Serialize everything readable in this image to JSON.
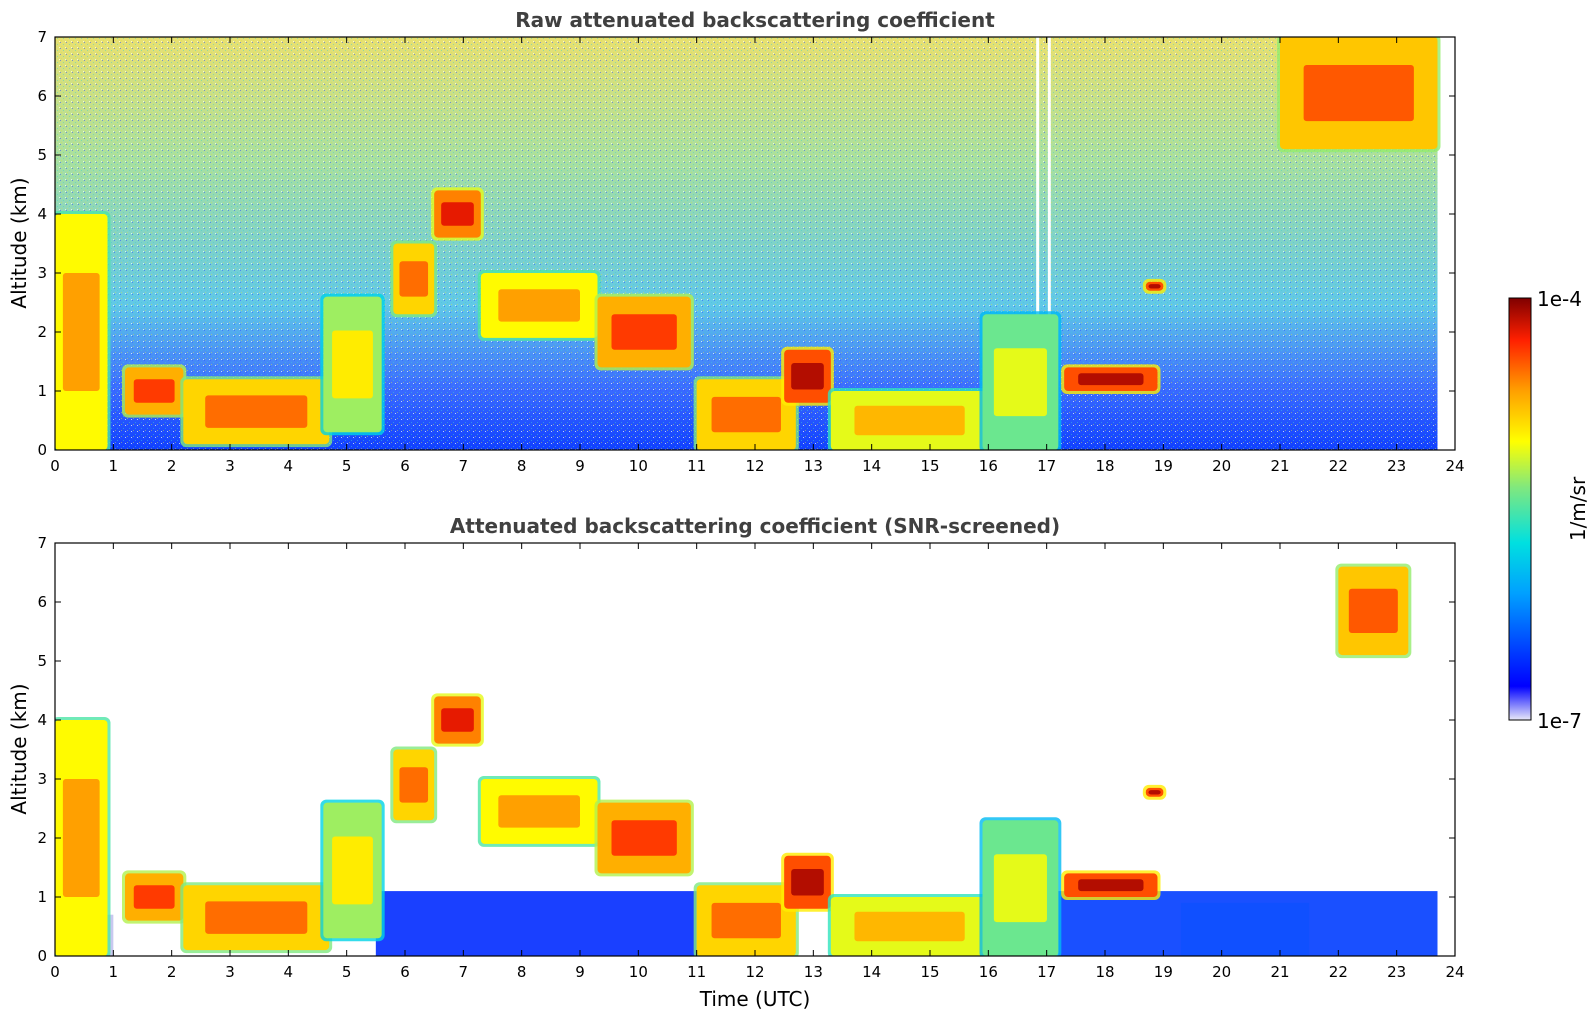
{
  "chart_data": [
    {
      "type": "heatmap",
      "title": "Raw attenuated backscattering coefficient",
      "xlabel": "",
      "ylabel": "Altitude (km)",
      "xlim": [
        0,
        24
      ],
      "ylim": [
        0,
        7
      ],
      "xticks": [
        "0",
        "1",
        "2",
        "3",
        "4",
        "5",
        "6",
        "7",
        "8",
        "9",
        "10",
        "11",
        "12",
        "13",
        "14",
        "15",
        "16",
        "17",
        "18",
        "19",
        "20",
        "21",
        "22",
        "23",
        "24"
      ],
      "yticks": [
        "0",
        "1",
        "2",
        "3",
        "4",
        "5",
        "6",
        "7"
      ],
      "data_extent_hours": [
        0,
        23.7
      ],
      "noise": true,
      "features": [
        {
          "x": [
            0.0,
            0.9
          ],
          "y": [
            0.0,
            4.0
          ],
          "level": 0.75
        },
        {
          "x": [
            1.2,
            2.2
          ],
          "y": [
            0.6,
            1.4
          ],
          "level": 0.85
        },
        {
          "x": [
            2.2,
            4.7
          ],
          "y": [
            0.1,
            1.2
          ],
          "level": 0.8
        },
        {
          "x": [
            4.6,
            5.6
          ],
          "y": [
            0.3,
            2.6
          ],
          "level": 0.65
        },
        {
          "x": [
            5.8,
            6.5
          ],
          "y": [
            2.3,
            3.5
          ],
          "level": 0.8
        },
        {
          "x": [
            6.5,
            7.3
          ],
          "y": [
            3.6,
            4.4
          ],
          "level": 0.9
        },
        {
          "x": [
            7.3,
            9.3
          ],
          "y": [
            1.9,
            3.0
          ],
          "level": 0.75
        },
        {
          "x": [
            9.3,
            10.9
          ],
          "y": [
            1.4,
            2.6
          ],
          "level": 0.85
        },
        {
          "x": [
            11.0,
            12.7
          ],
          "y": [
            0.0,
            1.2
          ],
          "level": 0.8
        },
        {
          "x": [
            12.5,
            13.3
          ],
          "y": [
            0.8,
            1.7
          ],
          "level": 0.95
        },
        {
          "x": [
            13.3,
            16.0
          ],
          "y": [
            0.0,
            1.0
          ],
          "level": 0.72
        },
        {
          "x": [
            15.9,
            17.2
          ],
          "y": [
            0.0,
            2.3
          ],
          "level": 0.6
        },
        {
          "x": [
            17.3,
            18.9
          ],
          "y": [
            1.0,
            1.4
          ],
          "level": 0.95
        },
        {
          "x": [
            18.7,
            19.0
          ],
          "y": [
            2.7,
            2.85
          ],
          "level": 0.95
        },
        {
          "x": [
            21.0,
            23.7
          ],
          "y": [
            5.1,
            7.0
          ],
          "level": 0.82
        }
      ]
    },
    {
      "type": "heatmap",
      "title": "Attenuated backscattering coefficient (SNR-screened)",
      "xlabel": "Time (UTC)",
      "ylabel": "Altitude (km)",
      "xlim": [
        0,
        24
      ],
      "ylim": [
        0,
        7
      ],
      "xticks": [
        "0",
        "1",
        "2",
        "3",
        "4",
        "5",
        "6",
        "7",
        "8",
        "9",
        "10",
        "11",
        "12",
        "13",
        "14",
        "15",
        "16",
        "17",
        "18",
        "19",
        "20",
        "21",
        "22",
        "23",
        "24"
      ],
      "yticks": [
        "0",
        "1",
        "2",
        "3",
        "4",
        "5",
        "6",
        "7"
      ],
      "data_extent_hours": [
        0,
        23.7
      ],
      "noise": false,
      "features": [
        {
          "x": [
            0.0,
            0.9
          ],
          "y": [
            0.0,
            4.0
          ],
          "level": 0.75
        },
        {
          "x": [
            1.2,
            2.2
          ],
          "y": [
            0.6,
            1.4
          ],
          "level": 0.85
        },
        {
          "x": [
            2.2,
            4.7
          ],
          "y": [
            0.1,
            1.2
          ],
          "level": 0.8
        },
        {
          "x": [
            4.6,
            5.6
          ],
          "y": [
            0.3,
            2.6
          ],
          "level": 0.65
        },
        {
          "x": [
            5.8,
            6.5
          ],
          "y": [
            2.3,
            3.5
          ],
          "level": 0.8
        },
        {
          "x": [
            6.5,
            7.3
          ],
          "y": [
            3.6,
            4.4
          ],
          "level": 0.9
        },
        {
          "x": [
            7.3,
            9.3
          ],
          "y": [
            1.9,
            3.0
          ],
          "level": 0.75
        },
        {
          "x": [
            9.3,
            10.9
          ],
          "y": [
            1.4,
            2.6
          ],
          "level": 0.85
        },
        {
          "x": [
            11.0,
            12.7
          ],
          "y": [
            0.0,
            1.2
          ],
          "level": 0.8
        },
        {
          "x": [
            12.5,
            13.3
          ],
          "y": [
            0.8,
            1.7
          ],
          "level": 0.95
        },
        {
          "x": [
            13.3,
            16.0
          ],
          "y": [
            0.0,
            1.0
          ],
          "level": 0.72
        },
        {
          "x": [
            15.9,
            17.2
          ],
          "y": [
            0.0,
            2.3
          ],
          "level": 0.6
        },
        {
          "x": [
            17.3,
            18.9
          ],
          "y": [
            1.0,
            1.4
          ],
          "level": 0.95
        },
        {
          "x": [
            18.7,
            19.0
          ],
          "y": [
            2.7,
            2.85
          ],
          "level": 0.95
        },
        {
          "x": [
            22.0,
            23.2
          ],
          "y": [
            5.1,
            6.6
          ],
          "level": 0.82
        }
      ]
    }
  ],
  "colorbar": {
    "label": "1/m/sr",
    "max_label": "1e-4",
    "min_label": "1e-7",
    "scale": "log",
    "stops": [
      "#e8e8f8",
      "#0000ff",
      "#00a0ff",
      "#00e0e0",
      "#7fe87f",
      "#ffff00",
      "#ffa000",
      "#ff2000",
      "#800000"
    ]
  }
}
